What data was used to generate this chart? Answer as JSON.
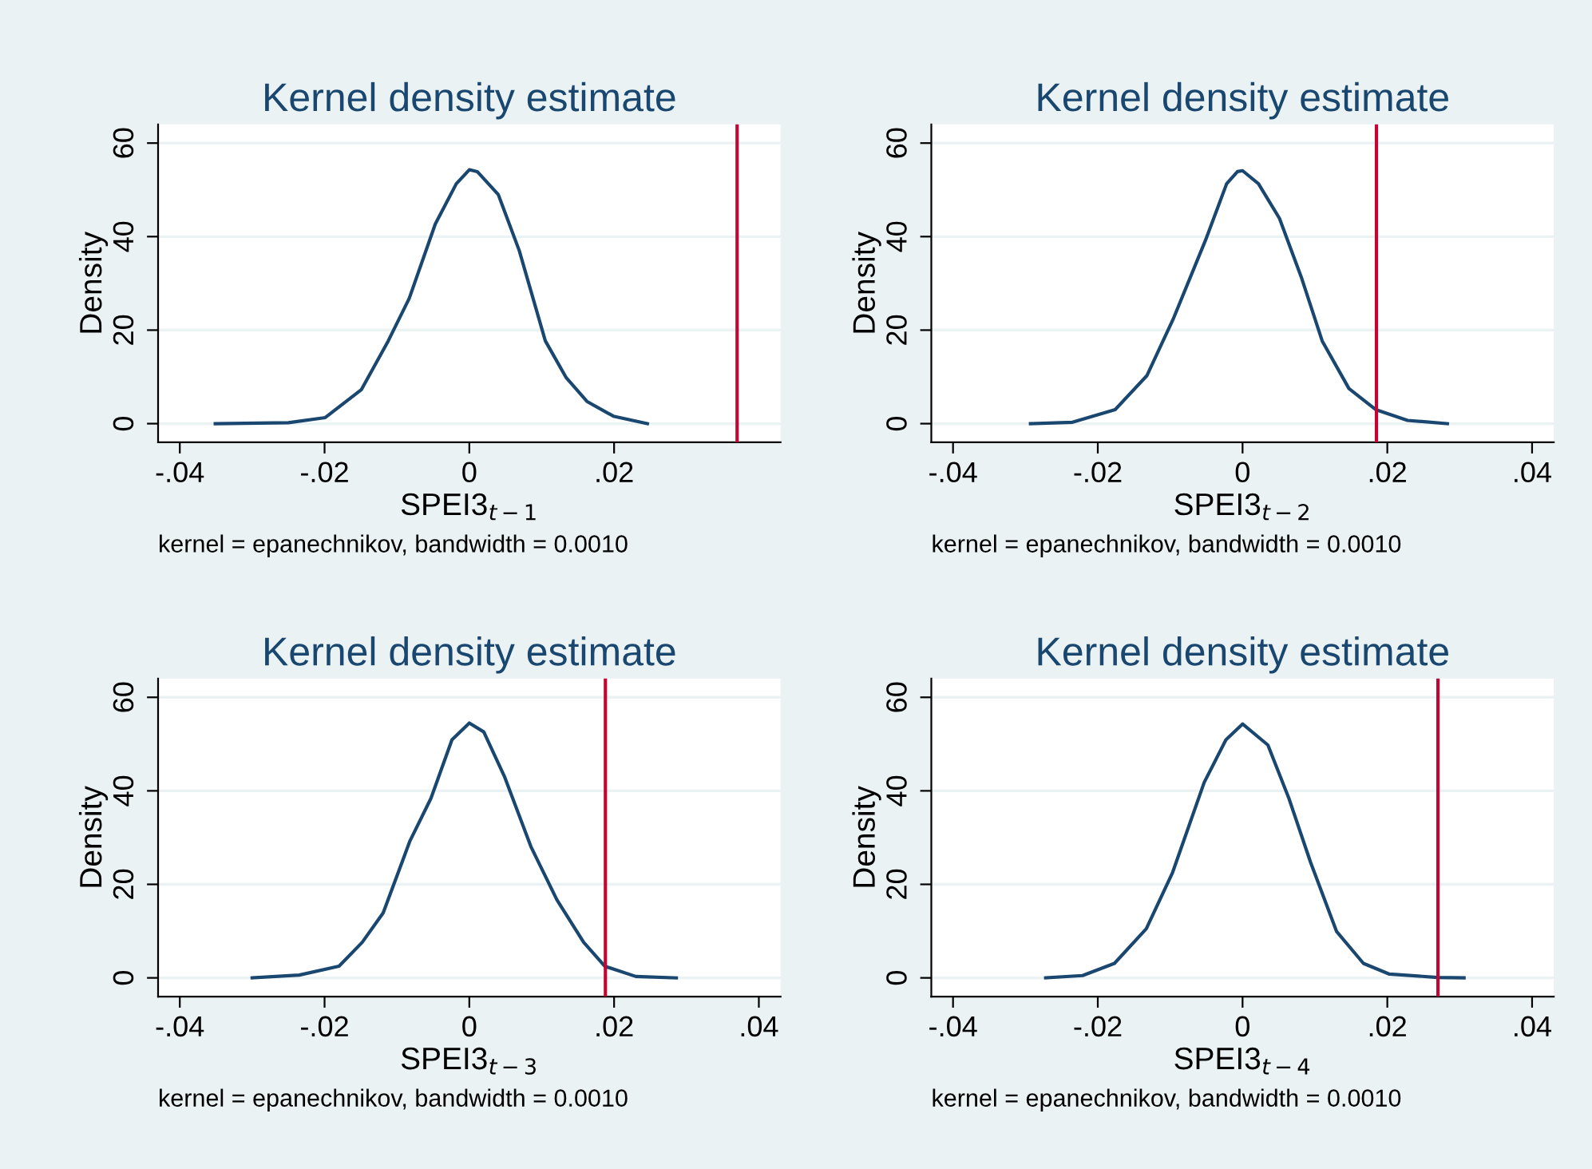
{
  "chart_data": [
    {
      "type": "line",
      "title": "Kernel density estimate",
      "xlabel": "SPEI3$_{t−1}$",
      "ylabel": "Density",
      "annotations": [
        "kernel = epanechnikov, bandwidth = 0.0010"
      ],
      "grid": "y",
      "marker": "none",
      "line_style": "solid",
      "xlim": [
        -0.043,
        0.043
      ],
      "ylim": [
        -4,
        64
      ],
      "xticks": [
        {
          "value": -0.04,
          "label": "-.04"
        },
        {
          "value": -0.02,
          "label": "-.02"
        },
        0,
        {
          "value": 0.02,
          "label": ".02"
        }
      ],
      "yticks": [
        0,
        20,
        40,
        60
      ],
      "x": [
        -0.0351,
        -0.025,
        -0.0199,
        -0.0149,
        -0.0112,
        -0.0083,
        -0.0047,
        -0.0018,
        0.0,
        0.0011,
        0.004,
        0.0069,
        0.0105,
        0.0134,
        0.0163,
        0.0199,
        0.0246
      ],
      "series": [
        {
          "color": "#1a476f",
          "values": [
            0,
            0.2,
            1.3,
            7.3,
            17.7,
            26.8,
            42.7,
            51.3,
            54.3,
            53.9,
            49,
            37,
            17.7,
            9.8,
            4.7,
            1.6,
            0
          ]
        }
      ],
      "ref_lines": [
        {
          "axis": "x",
          "value": 0.037,
          "color": "#c10534"
        }
      ]
    },
    {
      "type": "line",
      "title": "Kernel density estimate",
      "xlabel": "SPEI3$_{t−2}$",
      "ylabel": "Density",
      "annotations": [
        "kernel = epanechnikov, bandwidth = 0.0010"
      ],
      "grid": "y",
      "marker": "none",
      "line_style": "solid",
      "xlim": [
        -0.043,
        0.043
      ],
      "ylim": [
        -4,
        64
      ],
      "xticks": [
        {
          "value": -0.04,
          "label": "-.04"
        },
        {
          "value": -0.02,
          "label": "-.02"
        },
        0,
        {
          "value": 0.02,
          "label": ".02"
        },
        {
          "value": 0.04,
          "label": ".04"
        }
      ],
      "yticks": [
        0,
        20,
        40,
        60
      ],
      "x": [
        -0.0293,
        -0.0235,
        -0.0176,
        -0.0132,
        -0.0096,
        -0.0051,
        -0.0022,
        -0.0007,
        0.0,
        0.0022,
        0.0051,
        0.0081,
        0.011,
        0.0147,
        0.0184,
        0.0228,
        0.0283
      ],
      "series": [
        {
          "color": "#1a476f",
          "values": [
            0,
            0.3,
            3,
            10.3,
            22.3,
            39.3,
            51.3,
            53.9,
            54.1,
            51.3,
            43.9,
            31.4,
            17.7,
            7.5,
            3,
            0.7,
            0
          ]
        }
      ],
      "ref_lines": [
        {
          "axis": "x",
          "value": 0.0185,
          "color": "#c10534"
        }
      ]
    },
    {
      "type": "line",
      "title": "Kernel density estimate",
      "xlabel": "SPEI3$_{t−3}$",
      "ylabel": "Density",
      "annotations": [
        "kernel = epanechnikov, bandwidth = 0.0010"
      ],
      "grid": "y",
      "marker": "none",
      "line_style": "solid",
      "xlim": [
        -0.043,
        0.043
      ],
      "ylim": [
        -4,
        64
      ],
      "xticks": [
        {
          "value": -0.04,
          "label": "-.04"
        },
        {
          "value": -0.02,
          "label": "-.02"
        },
        0,
        {
          "value": 0.02,
          "label": ".02"
        },
        {
          "value": 0.04,
          "label": ".04"
        }
      ],
      "yticks": [
        0,
        20,
        40,
        60
      ],
      "x": [
        -0.03,
        -0.0235,
        -0.018,
        -0.0148,
        -0.0119,
        -0.0082,
        -0.0053,
        -0.0024,
        0.0,
        0.002,
        0.0049,
        0.0085,
        0.0121,
        0.0158,
        0.0187,
        0.023,
        0.0286
      ],
      "series": [
        {
          "color": "#1a476f",
          "values": [
            0,
            0.6,
            2.5,
            7.6,
            13.9,
            29.3,
            38.4,
            50.9,
            54.5,
            52.6,
            42.9,
            28.1,
            16.7,
            7.6,
            2.5,
            0.3,
            0
          ]
        }
      ],
      "ref_lines": [
        {
          "axis": "x",
          "value": 0.0188,
          "color": "#c10534"
        }
      ]
    },
    {
      "type": "line",
      "title": "Kernel density estimate",
      "xlabel": "SPEI3$_{t−4}$",
      "ylabel": "Density",
      "annotations": [
        "kernel = epanechnikov, bandwidth = 0.0010"
      ],
      "grid": "y",
      "marker": "none",
      "line_style": "solid",
      "xlim": [
        -0.043,
        0.043
      ],
      "ylim": [
        -4,
        64
      ],
      "xticks": [
        {
          "value": -0.04,
          "label": "-.04"
        },
        {
          "value": -0.02,
          "label": "-.02"
        },
        0,
        {
          "value": 0.02,
          "label": ".02"
        },
        {
          "value": 0.04,
          "label": ".04"
        }
      ],
      "yticks": [
        0,
        20,
        40,
        60
      ],
      "x": [
        -0.0272,
        -0.0221,
        -0.0177,
        -0.0133,
        -0.0097,
        -0.0053,
        -0.0023,
        0.0,
        0.0035,
        0.0064,
        0.0094,
        0.013,
        0.0167,
        0.0203,
        0.0269,
        0.0306
      ],
      "series": [
        {
          "color": "#1a476f",
          "values": [
            0,
            0.5,
            3.1,
            10.5,
            22.4,
            41.8,
            50.9,
            54.3,
            49.8,
            38.4,
            24.7,
            9.9,
            3.1,
            0.8,
            0.1,
            0
          ]
        }
      ],
      "ref_lines": [
        {
          "axis": "x",
          "value": 0.027,
          "color": "#c10534"
        }
      ]
    }
  ]
}
